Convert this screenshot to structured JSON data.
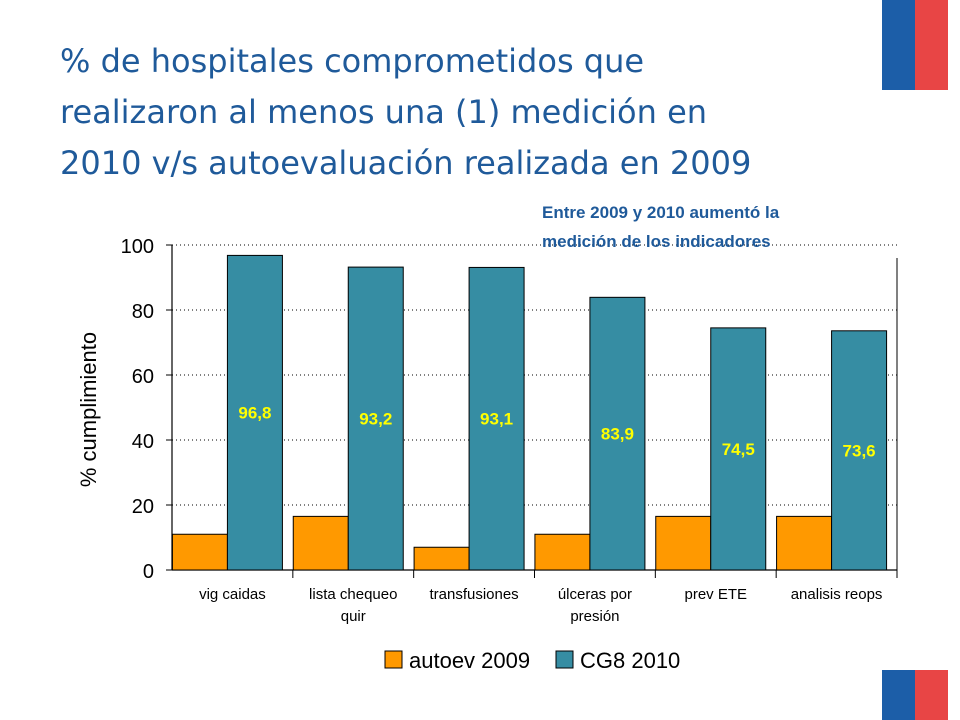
{
  "slide": {
    "title_lines": [
      "% de hospitales comprometidos que",
      "realizaron al menos una (1) medición en",
      "2010 v/s autoevaluación realizada en 2009"
    ],
    "annotation_lines": [
      "Entre 2009 y 2010 aumentó la",
      "medición de los indicadores"
    ],
    "colors": {
      "title": "#1f5a9a",
      "flag_blue": "#1c5ea8",
      "flag_red": "#e84545"
    }
  },
  "chart_data": {
    "type": "bar",
    "title": "",
    "xlabel": "",
    "ylabel": "% cumplimiento",
    "ylim": [
      0,
      100
    ],
    "yticks": [
      "0",
      "20",
      "40",
      "60",
      "80",
      "100"
    ],
    "grid": "horizontal dotted",
    "legend_position": "bottom",
    "categories": [
      [
        "vig caidas"
      ],
      [
        "lista chequeo",
        "quir"
      ],
      [
        "transfusiones"
      ],
      [
        "úlceras por",
        "presión"
      ],
      [
        "prev ETE"
      ],
      [
        "analisis reops"
      ]
    ],
    "series": [
      {
        "name": "autoev 2009",
        "color": "#ff9900",
        "values": [
          11,
          16.5,
          7,
          11,
          16.5,
          16.5
        ],
        "labels": [
          "",
          "",
          "",
          "",
          "",
          ""
        ]
      },
      {
        "name": "CG8 2010",
        "color": "#368da3",
        "values": [
          96.8,
          93.2,
          93.1,
          83.9,
          74.5,
          73.6
        ],
        "labels": [
          "96,8",
          "93,2",
          "93,1",
          "83,9",
          "74,5",
          "73,6"
        ],
        "label_color": "#ffff00"
      }
    ]
  }
}
